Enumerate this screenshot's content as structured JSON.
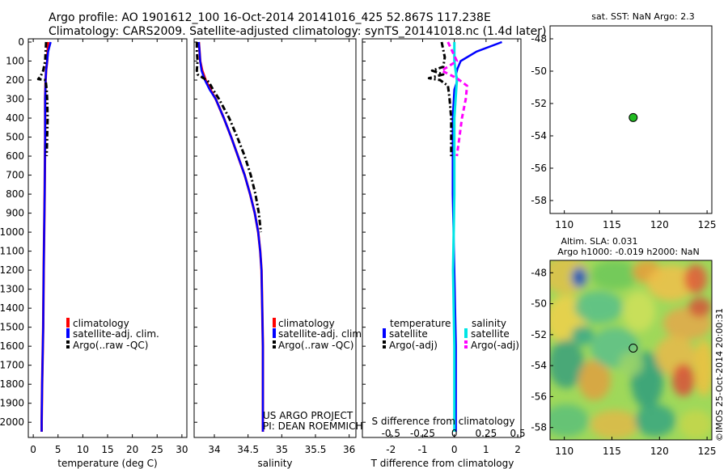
{
  "header": {
    "title_line1": "Argo profile: AO 1901612_100 16-Oct-2014 20141016_425 52.867S 117.238E",
    "title_line2": "Climatology: CARS2009. Satellite-adjusted climatology: synTS_20141018.nc (1.4d later)"
  },
  "colors": {
    "climatology": "#ff0000",
    "satellite": "#0000ff",
    "argo": "#000000",
    "sat_salinity": "#00e5e5",
    "argo_adj_salinity": "#ff00ff"
  },
  "chart_data": [
    {
      "type": "line",
      "name": "temperature-profile",
      "xlabel": "temperature (deg C)",
      "xlim": [
        -1,
        31
      ],
      "ylim": [
        2080,
        0
      ],
      "xticks": [
        0,
        5,
        10,
        15,
        20,
        25,
        30
      ],
      "yticks": [
        0,
        100,
        200,
        300,
        400,
        500,
        600,
        700,
        800,
        900,
        1000,
        1100,
        1200,
        1300,
        1400,
        1500,
        1600,
        1700,
        1800,
        1900,
        2000
      ],
      "legend": [
        "climatology",
        "satellite-adj. clim.",
        "Argo(..raw -QC)"
      ],
      "series": [
        {
          "name": "climatology",
          "depth": [
            0,
            50,
            100,
            150,
            200,
            300,
            500,
            800,
            1000,
            1200,
            1500,
            1800,
            2000,
            2050
          ],
          "values": [
            3.0,
            2.9,
            2.8,
            2.6,
            2.5,
            2.4,
            2.4,
            2.3,
            2.2,
            2.1,
            2.0,
            1.8,
            1.7,
            1.7
          ]
        },
        {
          "name": "satellite-adj. clim.",
          "depth": [
            0,
            50,
            100,
            150,
            200,
            300,
            500,
            800,
            1000,
            1200,
            1500,
            1800,
            2000,
            2050
          ],
          "values": [
            3.5,
            3.0,
            2.8,
            2.6,
            2.5,
            2.4,
            2.4,
            2.3,
            2.2,
            2.1,
            2.0,
            1.8,
            1.7,
            1.7
          ]
        },
        {
          "name": "Argo(..raw -QC)",
          "depth": [
            0,
            50,
            100,
            150,
            180,
            195,
            200,
            250,
            300,
            400,
            500,
            600
          ],
          "values": [
            2.6,
            2.5,
            2.4,
            2.0,
            1.5,
            1.0,
            2.5,
            2.7,
            2.8,
            2.9,
            2.8,
            2.7
          ]
        }
      ]
    },
    {
      "type": "line",
      "name": "salinity-profile",
      "xlabel": "salinity",
      "xlim": [
        33.7,
        36.1
      ],
      "ylim": [
        2080,
        0
      ],
      "xticks": [
        34,
        34.5,
        35,
        35.5,
        36
      ],
      "legend": [
        "climatology",
        "satellite-adj. clim.",
        "Argo(..raw -QC)"
      ],
      "annotation": [
        "US ARGO PROJECT",
        "PI: DEAN ROEMMICH"
      ],
      "series": [
        {
          "name": "climatology",
          "depth": [
            0,
            50,
            100,
            150,
            200,
            250,
            300,
            400,
            500,
            600,
            700,
            800,
            900,
            1000,
            1100,
            1200,
            1400,
            1600,
            1800,
            2000,
            2050
          ],
          "values": [
            33.77,
            33.78,
            33.79,
            33.82,
            33.87,
            33.94,
            34.02,
            34.14,
            34.25,
            34.35,
            34.45,
            34.53,
            34.6,
            34.65,
            34.68,
            34.7,
            34.71,
            34.72,
            34.72,
            34.72,
            34.72
          ]
        },
        {
          "name": "satellite-adj. clim.",
          "depth": [
            0,
            50,
            100,
            150,
            200,
            250,
            300,
            400,
            500,
            600,
            700,
            800,
            900,
            1000,
            1100,
            1200,
            1400,
            1600,
            1800,
            2000,
            2050
          ],
          "values": [
            33.77,
            33.78,
            33.79,
            33.81,
            33.86,
            33.93,
            34.02,
            34.14,
            34.25,
            34.35,
            34.45,
            34.53,
            34.6,
            34.65,
            34.68,
            34.7,
            34.71,
            34.72,
            34.72,
            34.72,
            34.72
          ]
        },
        {
          "name": "Argo(..raw -QC)",
          "depth": [
            0,
            50,
            100,
            150,
            170,
            190,
            210,
            250,
            300,
            400,
            500,
            600,
            700,
            800,
            900,
            1000
          ],
          "values": [
            33.74,
            33.74,
            33.75,
            33.74,
            33.75,
            33.84,
            33.92,
            33.98,
            34.07,
            34.22,
            34.34,
            34.45,
            34.54,
            34.61,
            34.66,
            34.69
          ]
        }
      ]
    },
    {
      "type": "line",
      "name": "difference-profile",
      "xlabel": "T difference from climatology",
      "xlabel_top": "S difference from climatology",
      "xlim": [
        -2.9,
        2.1
      ],
      "ylim": [
        2080,
        0
      ],
      "xticks": [
        -2,
        -1,
        0,
        1,
        2
      ],
      "sticks": [
        "-0.5",
        "-0.25",
        "0",
        "0.25",
        "0.5"
      ],
      "legend_titles": [
        "temperature",
        "salinity"
      ],
      "legend": [
        "satellite",
        "Argo(-adj)",
        "satellite",
        "Argo(-adj)"
      ],
      "series": [
        {
          "name": "T satellite",
          "depth": [
            0,
            50,
            100,
            140,
            170,
            200,
            250,
            400,
            800,
            1200,
            1600,
            2000,
            2050
          ],
          "values": [
            1.5,
            0.7,
            0.2,
            0.1,
            0.05,
            0.1,
            0.0,
            -0.05,
            -0.05,
            0.0,
            0.05,
            0.05,
            0.05
          ]
        },
        {
          "name": "T Argo(-adj)",
          "depth": [
            0,
            80,
            130,
            150,
            170,
            190,
            200,
            230,
            300,
            400,
            500,
            600
          ],
          "values": [
            -0.4,
            -0.3,
            -0.35,
            -0.7,
            -0.35,
            -0.8,
            -0.45,
            -0.2,
            -0.15,
            -0.1,
            -0.1,
            -0.1
          ]
        },
        {
          "name": "S satellite",
          "depth": [
            0,
            100,
            200,
            400,
            800,
            1200,
            1600,
            2000,
            2050
          ],
          "values": [
            0.0,
            0.0,
            0.02,
            0.0,
            0.0,
            -0.01,
            0.0,
            0.0,
            0.0
          ]
        },
        {
          "name": "S Argo(-adj)",
          "depth": [
            0,
            100,
            150,
            190,
            230,
            300,
            400,
            500,
            600
          ],
          "values": [
            -0.05,
            0.02,
            -0.1,
            0.02,
            0.1,
            0.09,
            0.06,
            0.04,
            0.02
          ]
        }
      ]
    }
  ],
  "map_sst": {
    "title": "sat. SST: NaN Argo: 2.3",
    "xticks": [
      "110",
      "115",
      "120",
      "125"
    ],
    "yticks": [
      "-48",
      "-50",
      "-52",
      "-54",
      "-56",
      "-58"
    ],
    "point": {
      "lon": 117.238,
      "lat": -52.867
    }
  },
  "map_sla": {
    "title_line1": "Altim. SLA: 0.031",
    "title_line2": "Argo h1000: -0.019 h2000: NaN",
    "xticks": [
      "110",
      "115",
      "120",
      "125"
    ],
    "yticks": [
      "-48",
      "-50",
      "-52",
      "-54",
      "-56",
      "-58"
    ],
    "point": {
      "lon": 117.238,
      "lat": -52.867
    },
    "side_label": "©IMOS 25-Oct-2014 20:00:31"
  }
}
